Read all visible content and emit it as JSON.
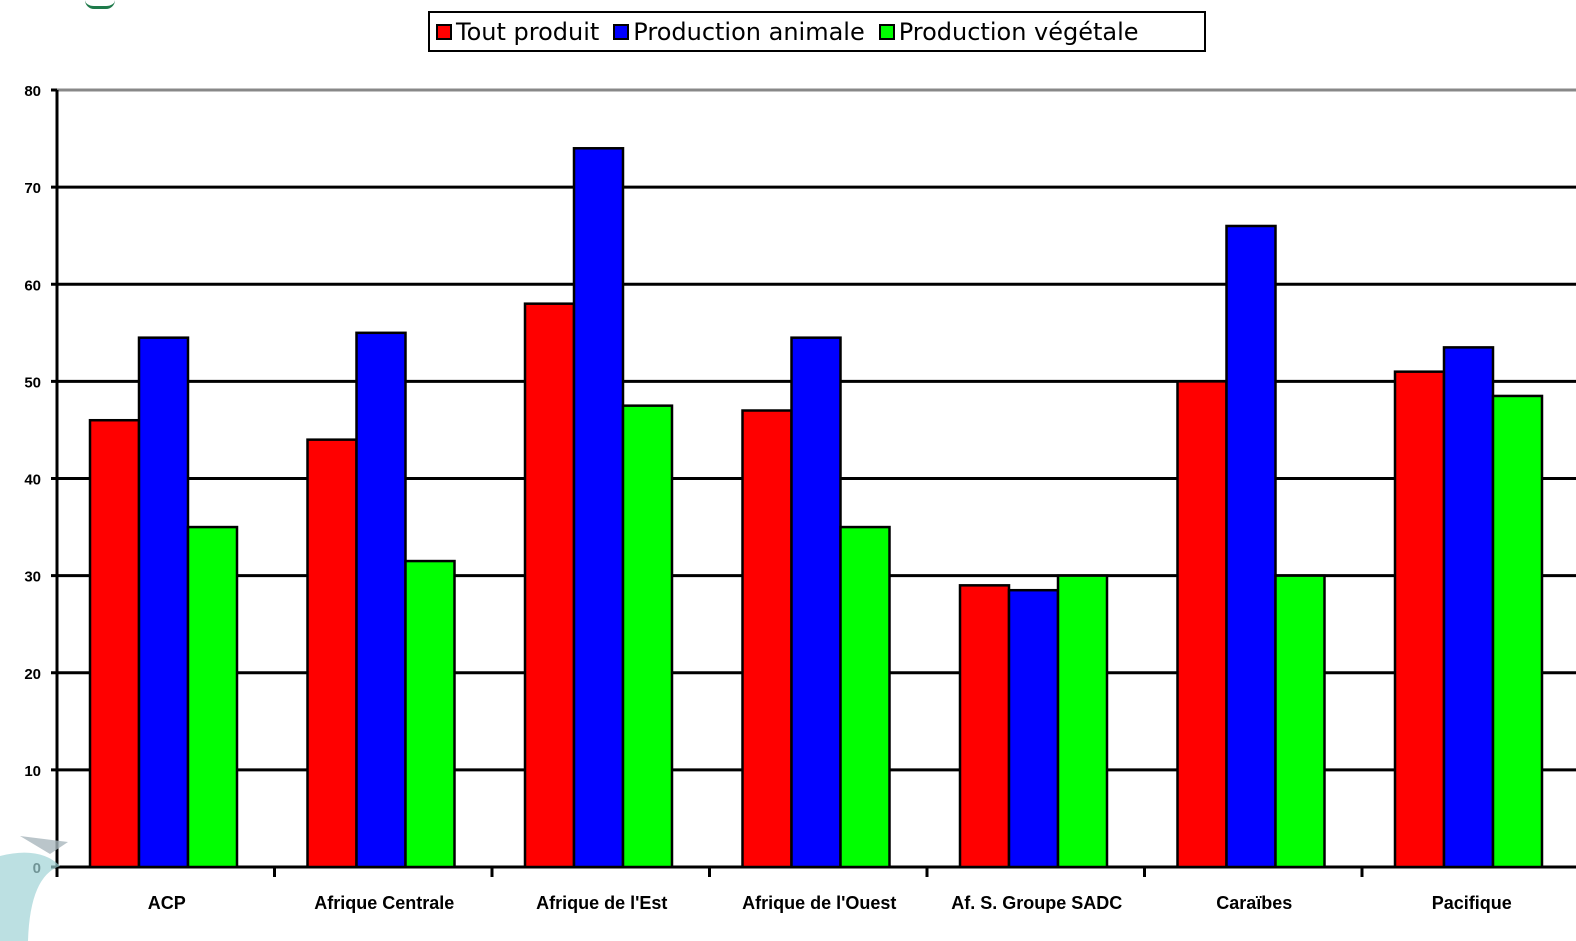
{
  "chart_data": {
    "type": "bar",
    "categories": [
      "ACP",
      "Afrique Centrale",
      "Afrique de l'Est",
      "Afrique de l'Ouest",
      "Af. S. Groupe SADC",
      "Caraïbes",
      "Pacifique"
    ],
    "series": [
      {
        "name": "Tout produit",
        "values": [
          46,
          44,
          58,
          47,
          29,
          50,
          51
        ]
      },
      {
        "name": "Production animale",
        "values": [
          54.5,
          55,
          74,
          54.5,
          28.5,
          66,
          53.5
        ]
      },
      {
        "name": "Production végétale",
        "values": [
          35,
          31.5,
          47.5,
          35,
          30,
          30,
          48.5
        ]
      }
    ],
    "ylim": [
      0,
      80
    ],
    "yticks": [
      "0",
      "10",
      "20",
      "30",
      "40",
      "50",
      "60",
      "70",
      "80"
    ],
    "grid": true,
    "legend_position": "top",
    "title": "",
    "xlabel": "",
    "ylabel": ""
  },
  "colors": {
    "Tout produit": "#ff0000",
    "Production animale": "#0000ff",
    "Production végétale": "#00ff00"
  }
}
